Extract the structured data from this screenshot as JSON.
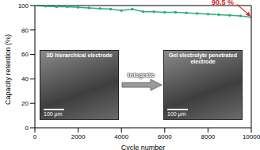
{
  "chart_data": {
    "type": "line",
    "x_label": "Cycle number",
    "y_label": "Capacity retention (%)",
    "x": [
      0,
      500,
      1000,
      1500,
      2000,
      2500,
      3000,
      3500,
      4000,
      4500,
      5000,
      5500,
      6000,
      6500,
      7000,
      7500,
      8000,
      8500,
      9000,
      9500,
      10000
    ],
    "values": [
      100,
      99.5,
      99,
      99,
      98.5,
      98,
      97.5,
      97,
      96,
      97,
      95,
      95,
      94.5,
      94.5,
      94,
      93.5,
      93,
      92.5,
      92,
      91.5,
      90.5
    ],
    "color": "#2fae78",
    "xlim": [
      0,
      10000
    ],
    "ylim": [
      0,
      100
    ],
    "xticks": [
      0,
      2000,
      4000,
      6000,
      8000,
      10000
    ],
    "yticks": [
      0,
      20,
      40,
      60,
      80,
      100
    ],
    "annotations": [
      {
        "text": "90.5 %",
        "x": 10000,
        "y": 90.5,
        "color": "#e02020"
      }
    ],
    "insets": [
      {
        "title": "3D hierarchical electrode",
        "scale_bar": "100 μm"
      },
      {
        "title": "Gel electrolyte penetrated electrode",
        "scale_bar": "100 μm"
      }
    ],
    "arrow_label": "Integrate"
  }
}
